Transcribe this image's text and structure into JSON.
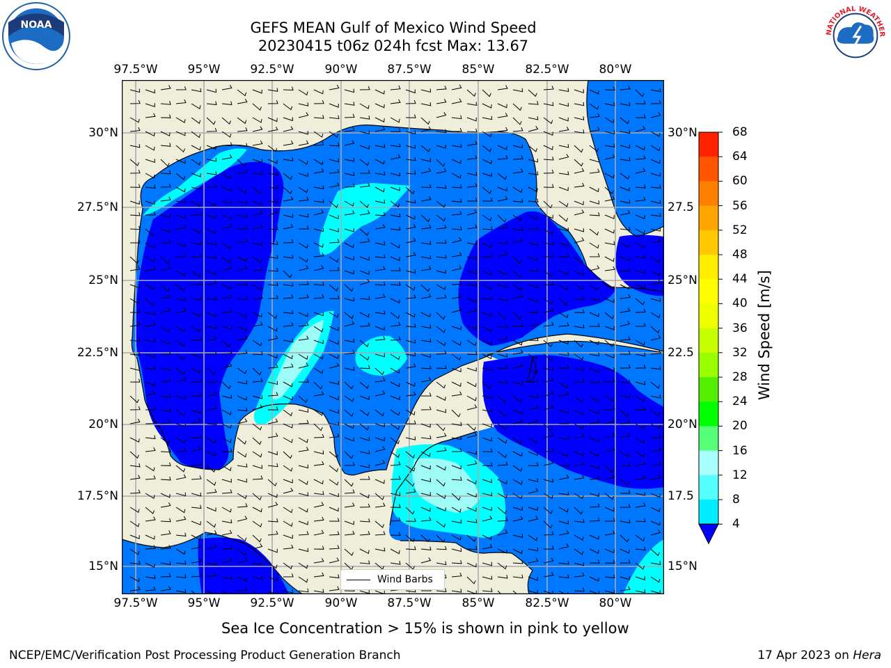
{
  "title": {
    "line1": "GEFS MEAN Gulf of Mexico Wind Speed",
    "line2": "20230415 t06z 024h fcst   Max: 13.67"
  },
  "map": {
    "lon_labels": [
      "97.5°W",
      "95°W",
      "92.5°W",
      "90°W",
      "87.5°W",
      "85°W",
      "82.5°W",
      "80°W"
    ],
    "lat_labels_left": [
      "30°N",
      "27.5°N",
      "25°N",
      "22.5°N",
      "20°N",
      "17.5°N",
      "15°N"
    ],
    "lat_labels_right": [
      "30°N",
      "27.5",
      "25°N",
      "22.5",
      "20°N",
      "17.5",
      "15°N"
    ],
    "legend_label": "Wind Barbs",
    "colors": {
      "land": "#efeedb",
      "ocean_low": "#0000ff",
      "ocean_mid": "#0077ff",
      "ocean_high": "#00ffff",
      "ocean_higher": "#9ffbf6",
      "grid": "#aaaaaa"
    }
  },
  "colorbar": {
    "title": "Wind Speed [m/s]",
    "levels": [
      "68",
      "64",
      "60",
      "56",
      "52",
      "48",
      "44",
      "40",
      "36",
      "32",
      "28",
      "24",
      "20",
      "16",
      "12",
      "8",
      "4"
    ],
    "colors": [
      "#ff0000",
      "#ff2200",
      "#ff5500",
      "#ff8000",
      "#ffa500",
      "#ffc800",
      "#ffee00",
      "#ffff00",
      "#eeff00",
      "#c8ff00",
      "#99ff00",
      "#55ee00",
      "#00ff00",
      "#55ff77",
      "#aaffff",
      "#55ffff",
      "#00eeff",
      "#0080ff"
    ],
    "underflow_color": "#0000ff"
  },
  "caption": "Sea Ice Concentration > 15% is shown in pink to yellow",
  "footer": {
    "left": "NCEP/EMC/Verification Post Processing Product Generation Branch",
    "date": "17 Apr 2023 on ",
    "machine": "Hera"
  },
  "logos": {
    "left": "NOAA",
    "right": "NATIONAL WEATHER SERVICE"
  }
}
